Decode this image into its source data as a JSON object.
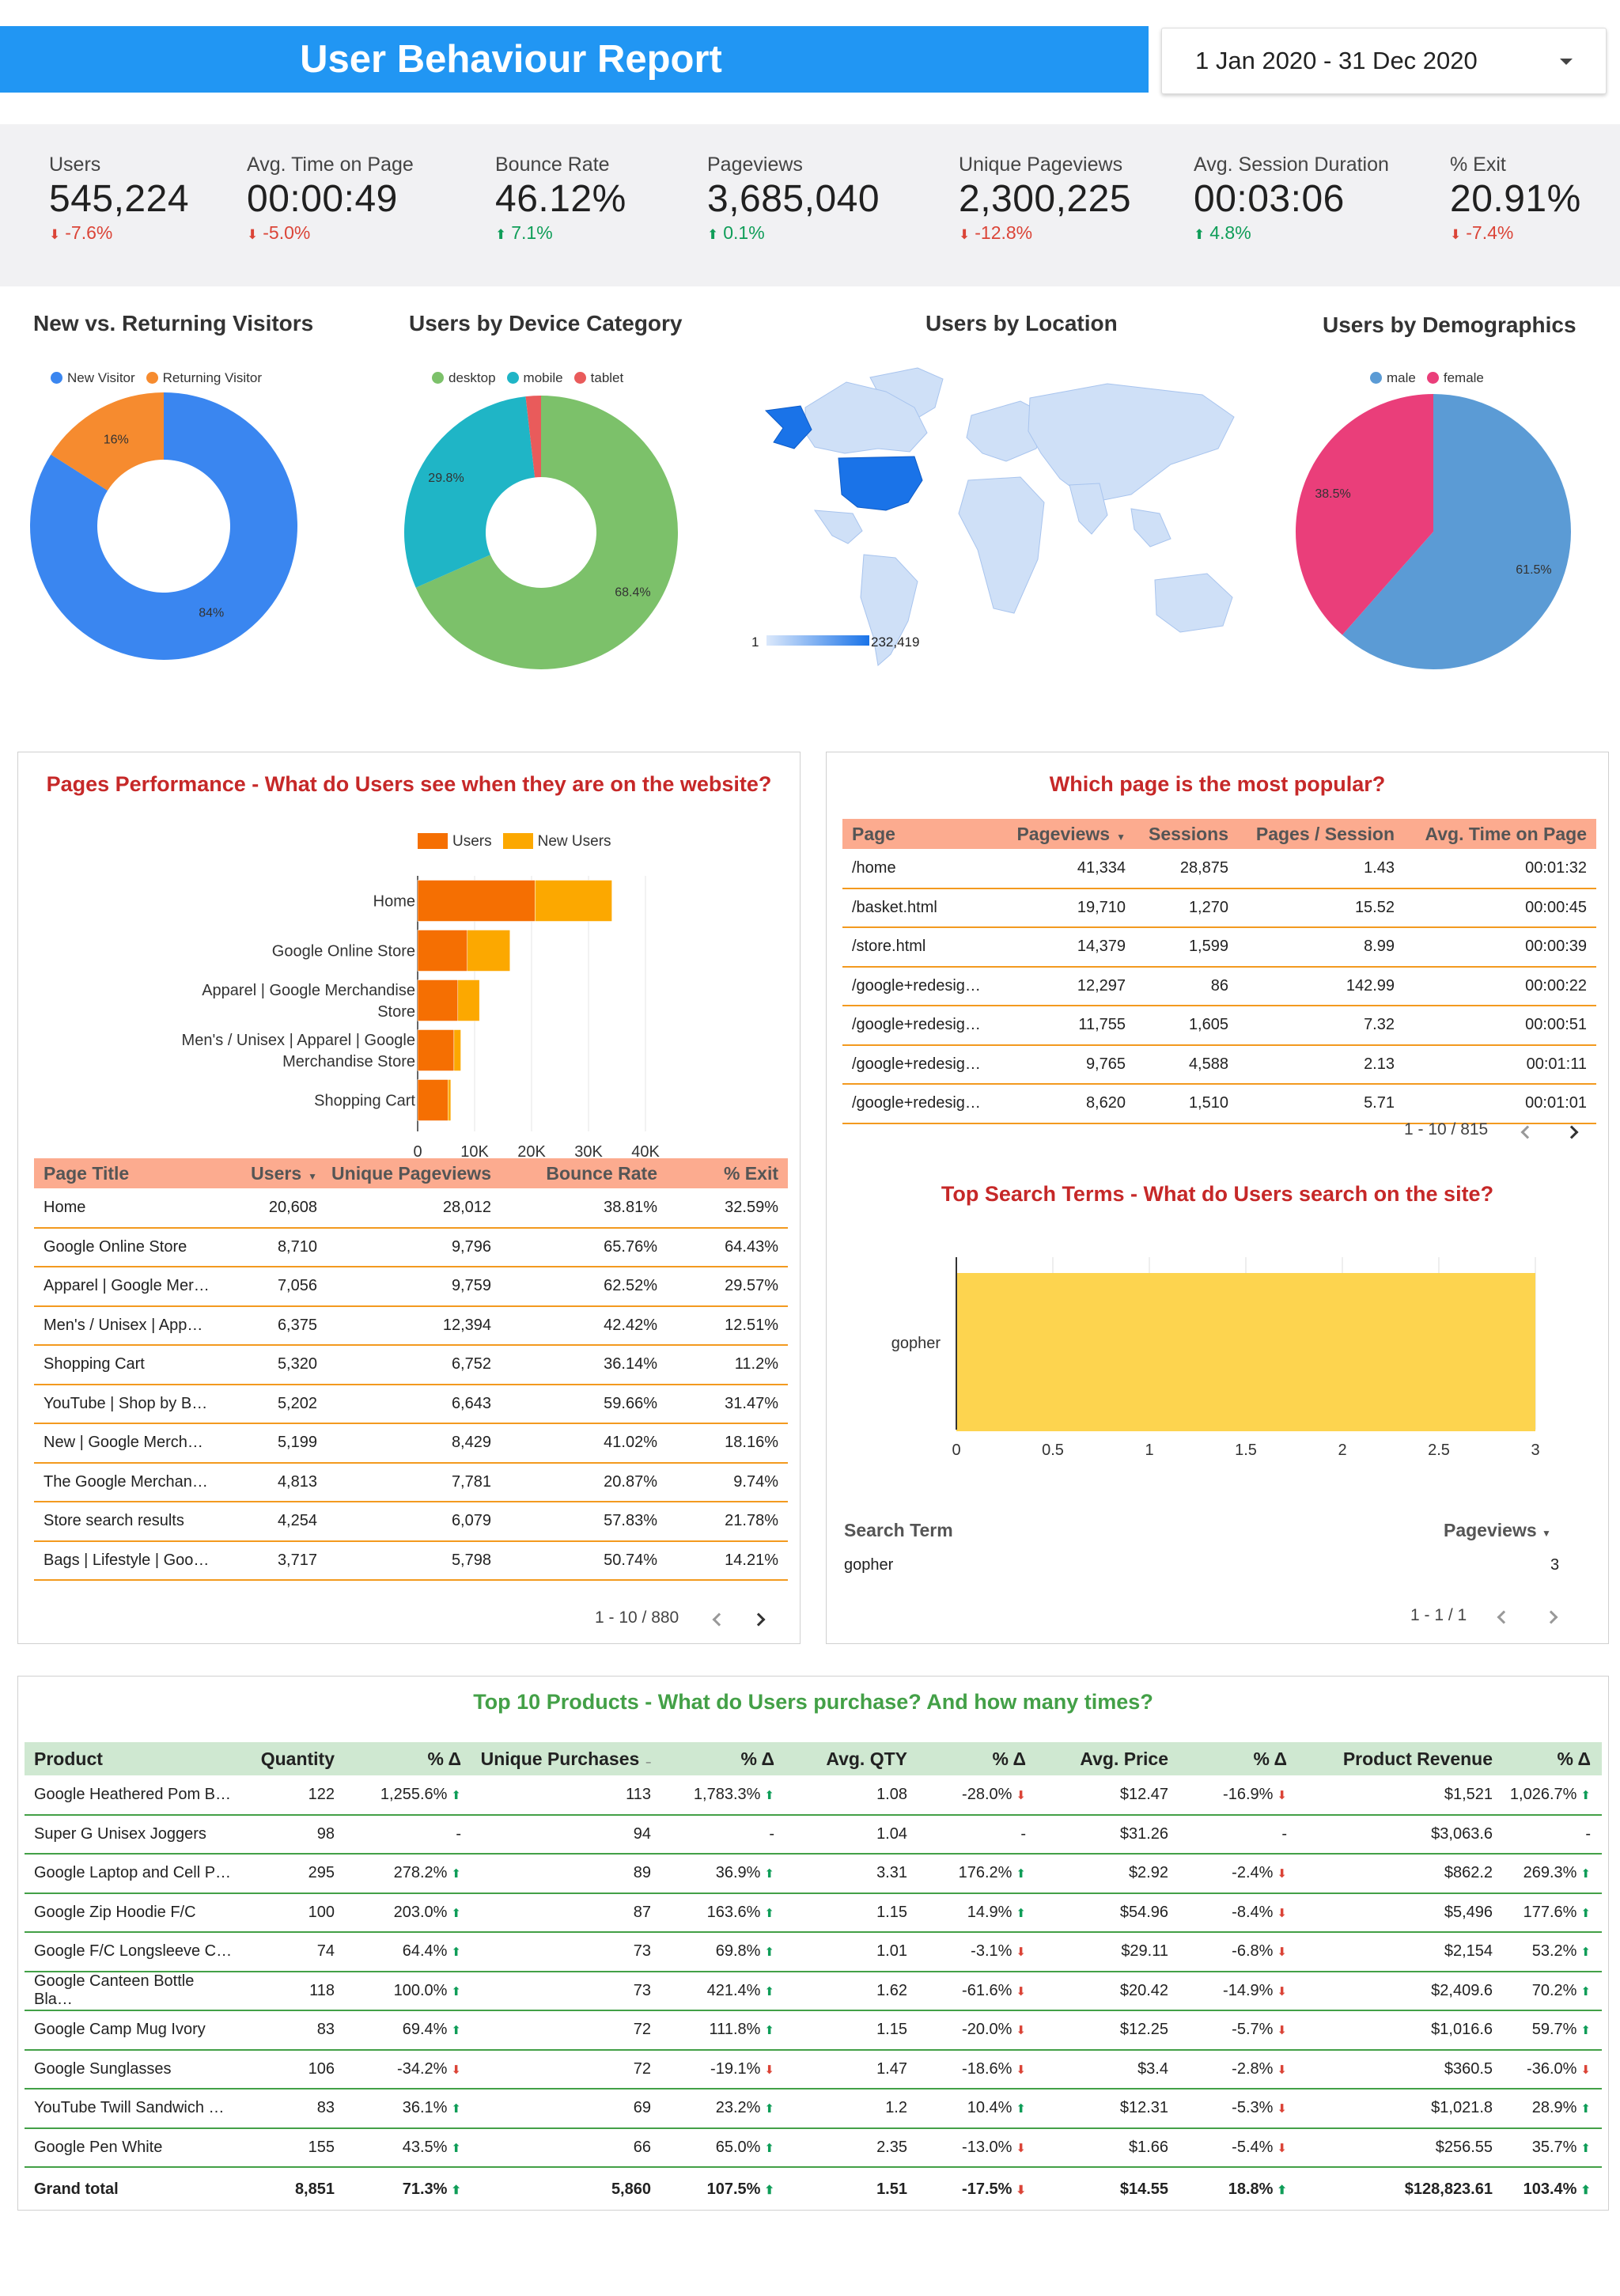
{
  "header": {
    "title": "User Behaviour Report",
    "date_range": "1 Jan 2020 - 31 Dec 2020"
  },
  "kpis": [
    {
      "label": "Users",
      "value": "545,224",
      "change": "-7.6%",
      "dir": "down"
    },
    {
      "label": "Avg. Time on Page",
      "value": "00:00:49",
      "change": "-5.0%",
      "dir": "down"
    },
    {
      "label": "Bounce Rate",
      "value": "46.12%",
      "change": "7.1%",
      "dir": "up"
    },
    {
      "label": "Pageviews",
      "value": "3,685,040",
      "change": "0.1%",
      "dir": "up"
    },
    {
      "label": "Unique Pageviews",
      "value": "2,300,225",
      "change": "-12.8%",
      "dir": "down"
    },
    {
      "label": "Avg. Session Duration",
      "value": "00:03:06",
      "change": "4.8%",
      "dir": "up"
    },
    {
      "label": "% Exit",
      "value": "20.91%",
      "change": "-7.4%",
      "dir": "down"
    }
  ],
  "colors": {
    "brand": "#2196f3",
    "up": "#0f9d58",
    "down": "#db4437",
    "header_orange": "#fcab8f",
    "header_green": "#cfe8d1"
  },
  "chart_data": [
    {
      "type": "pie",
      "title": "New vs. Returning Visitors",
      "donut": true,
      "categories": [
        "New Visitor",
        "Returning Visitor"
      ],
      "values": [
        84,
        16
      ],
      "labels": [
        "84%",
        "16%"
      ],
      "colors": [
        "#3a86f0",
        "#f68b2f"
      ]
    },
    {
      "type": "pie",
      "title": "Users by Device Category",
      "donut": true,
      "categories": [
        "desktop",
        "mobile",
        "tablet"
      ],
      "values": [
        68.4,
        29.8,
        1.8
      ],
      "labels": [
        "68.4%",
        "29.8%",
        ""
      ],
      "colors": [
        "#7cc16a",
        "#1fb5c6",
        "#e95b5b"
      ]
    },
    {
      "type": "heatmap",
      "title": "Users by Location",
      "scale_min": "1",
      "scale_max": "232,419"
    },
    {
      "type": "pie",
      "title": "Users by Demographics",
      "donut": false,
      "categories": [
        "male",
        "female"
      ],
      "values": [
        61.5,
        38.5
      ],
      "labels": [
        "61.5%",
        "38.5%"
      ],
      "colors": [
        "#5b9bd5",
        "#ea3e7a"
      ]
    },
    {
      "type": "bar",
      "orientation": "horizontal",
      "stacked": true,
      "title": "Pages Performance - What do Users see when they are on the website?",
      "categories": [
        "Home",
        "Google Online Store",
        "Apparel | Google Merchandise Store",
        "Men's / Unisex | Apparel | Google Merchandise Store",
        "Shopping Cart"
      ],
      "series": [
        {
          "name": "Users",
          "color": "#f56f02",
          "values": [
            20608,
            8710,
            7056,
            6375,
            5320
          ]
        },
        {
          "name": "New Users",
          "color": "#fca800",
          "values": [
            13500,
            7500,
            3800,
            1200,
            500
          ]
        }
      ],
      "xlim": [
        0,
        40000
      ],
      "xticks": [
        "0",
        "10K",
        "20K",
        "30K",
        "40K"
      ]
    },
    {
      "type": "bar",
      "orientation": "horizontal",
      "title": "Top Search Terms - What do Users search on the site?",
      "categories": [
        "gopher"
      ],
      "values": [
        3
      ],
      "color": "#fdd44f",
      "xlim": [
        0,
        3
      ],
      "xticks": [
        "0",
        "0.5",
        "1",
        "1.5",
        "2",
        "2.5",
        "3"
      ]
    }
  ],
  "pages_panel": {
    "title": "Pages Performance - What do Users see when they are on the website?",
    "bar_labels": [
      [
        "Home"
      ],
      [
        "Google Online Store"
      ],
      [
        "Apparel | Google Merchandise",
        "Store"
      ],
      [
        "Men's / Unisex | Apparel | Google",
        "Merchandise Store"
      ],
      [
        "Shopping Cart"
      ]
    ],
    "legend": [
      "Users",
      "New Users"
    ],
    "columns": [
      "Page Title",
      "Users",
      "Unique Pageviews",
      "Bounce Rate",
      "% Exit"
    ],
    "rows": [
      [
        "Home",
        "20,608",
        "28,012",
        "38.81%",
        "32.59%"
      ],
      [
        "Google Online Store",
        "8,710",
        "9,796",
        "65.76%",
        "64.43%"
      ],
      [
        "Apparel | Google Mer…",
        "7,056",
        "9,759",
        "62.52%",
        "29.57%"
      ],
      [
        "Men's / Unisex | App…",
        "6,375",
        "12,394",
        "42.42%",
        "12.51%"
      ],
      [
        "Shopping Cart",
        "5,320",
        "6,752",
        "36.14%",
        "11.2%"
      ],
      [
        "YouTube | Shop by B…",
        "5,202",
        "6,643",
        "59.66%",
        "31.47%"
      ],
      [
        "New | Google Merch…",
        "5,199",
        "8,429",
        "41.02%",
        "18.16%"
      ],
      [
        "The Google Merchan…",
        "4,813",
        "7,781",
        "20.87%",
        "9.74%"
      ],
      [
        "Store search results",
        "4,254",
        "6,079",
        "57.83%",
        "21.78%"
      ],
      [
        "Bags | Lifestyle | Goo…",
        "3,717",
        "5,798",
        "50.74%",
        "14.21%"
      ]
    ],
    "pagination": "1 - 10 / 880"
  },
  "popular_panel": {
    "title": "Which page is the most popular?",
    "columns": [
      "Page",
      "Pageviews",
      "Sessions",
      "Pages / Session",
      "Avg. Time on Page"
    ],
    "rows": [
      [
        "/home",
        "41,334",
        "28,875",
        "1.43",
        "00:01:32"
      ],
      [
        "/basket.html",
        "19,710",
        "1,270",
        "15.52",
        "00:00:45"
      ],
      [
        "/store.html",
        "14,379",
        "1,599",
        "8.99",
        "00:00:39"
      ],
      [
        "/google+redesig…",
        "12,297",
        "86",
        "142.99",
        "00:00:22"
      ],
      [
        "/google+redesig…",
        "11,755",
        "1,605",
        "7.32",
        "00:00:51"
      ],
      [
        "/google+redesig…",
        "9,765",
        "4,588",
        "2.13",
        "00:01:11"
      ],
      [
        "/google+redesig…",
        "8,620",
        "1,510",
        "5.71",
        "00:01:01"
      ]
    ],
    "pagination": "1 - 10 / 815"
  },
  "search_panel": {
    "title": "Top Search Terms - What do Users search on the site?",
    "columns": [
      "Search Term",
      "Pageviews"
    ],
    "rows": [
      [
        "gopher",
        "3"
      ]
    ],
    "pagination": "1 - 1 / 1"
  },
  "products_panel": {
    "title": "Top 10 Products - What do Users purchase? And how many times?",
    "columns": [
      "Product",
      "Quantity",
      "% Δ",
      "Unique Purchases",
      "% Δ",
      "Avg. QTY",
      "% Δ",
      "Avg. Price",
      "% Δ",
      "Product Revenue",
      "% Δ"
    ],
    "rows": [
      [
        "Google Heathered Pom B…",
        "122",
        "1,255.6%",
        "113",
        "1,783.3%",
        "1.08",
        "-28.0%",
        "$12.47",
        "-16.9%",
        "$1,521",
        "1,026.7%"
      ],
      [
        "Super G Unisex Joggers",
        "98",
        "-",
        "94",
        "-",
        "1.04",
        "-",
        "$31.26",
        "-",
        "$3,063.6",
        "-"
      ],
      [
        "Google Laptop and Cell P…",
        "295",
        "278.2%",
        "89",
        "36.9%",
        "3.31",
        "176.2%",
        "$2.92",
        "-2.4%",
        "$862.2",
        "269.3%"
      ],
      [
        "Google Zip Hoodie F/C",
        "100",
        "203.0%",
        "87",
        "163.6%",
        "1.15",
        "14.9%",
        "$54.96",
        "-8.4%",
        "$5,496",
        "177.6%"
      ],
      [
        "Google F/C Longsleeve C…",
        "74",
        "64.4%",
        "73",
        "69.8%",
        "1.01",
        "-3.1%",
        "$29.11",
        "-6.8%",
        "$2,154",
        "53.2%"
      ],
      [
        "Google Canteen Bottle Bla…",
        "118",
        "100.0%",
        "73",
        "421.4%",
        "1.62",
        "-61.6%",
        "$20.42",
        "-14.9%",
        "$2,409.6",
        "70.2%"
      ],
      [
        "Google Camp Mug Ivory",
        "83",
        "69.4%",
        "72",
        "111.8%",
        "1.15",
        "-20.0%",
        "$12.25",
        "-5.7%",
        "$1,016.6",
        "59.7%"
      ],
      [
        "Google Sunglasses",
        "106",
        "-34.2%",
        "72",
        "-19.1%",
        "1.47",
        "-18.6%",
        "$3.4",
        "-2.8%",
        "$360.5",
        "-36.0%"
      ],
      [
        "YouTube Twill Sandwich …",
        "83",
        "36.1%",
        "69",
        "23.2%",
        "1.2",
        "10.4%",
        "$12.31",
        "-5.3%",
        "$1,021.8",
        "28.9%"
      ],
      [
        "Google Pen White",
        "155",
        "43.5%",
        "66",
        "65.0%",
        "2.35",
        "-13.0%",
        "$1.66",
        "-5.4%",
        "$256.55",
        "35.7%"
      ]
    ],
    "total": [
      "Grand total",
      "8,851",
      "71.3%",
      "5,860",
      "107.5%",
      "1.51",
      "-17.5%",
      "$14.55",
      "18.8%",
      "$128,823.61",
      "103.4%"
    ]
  }
}
